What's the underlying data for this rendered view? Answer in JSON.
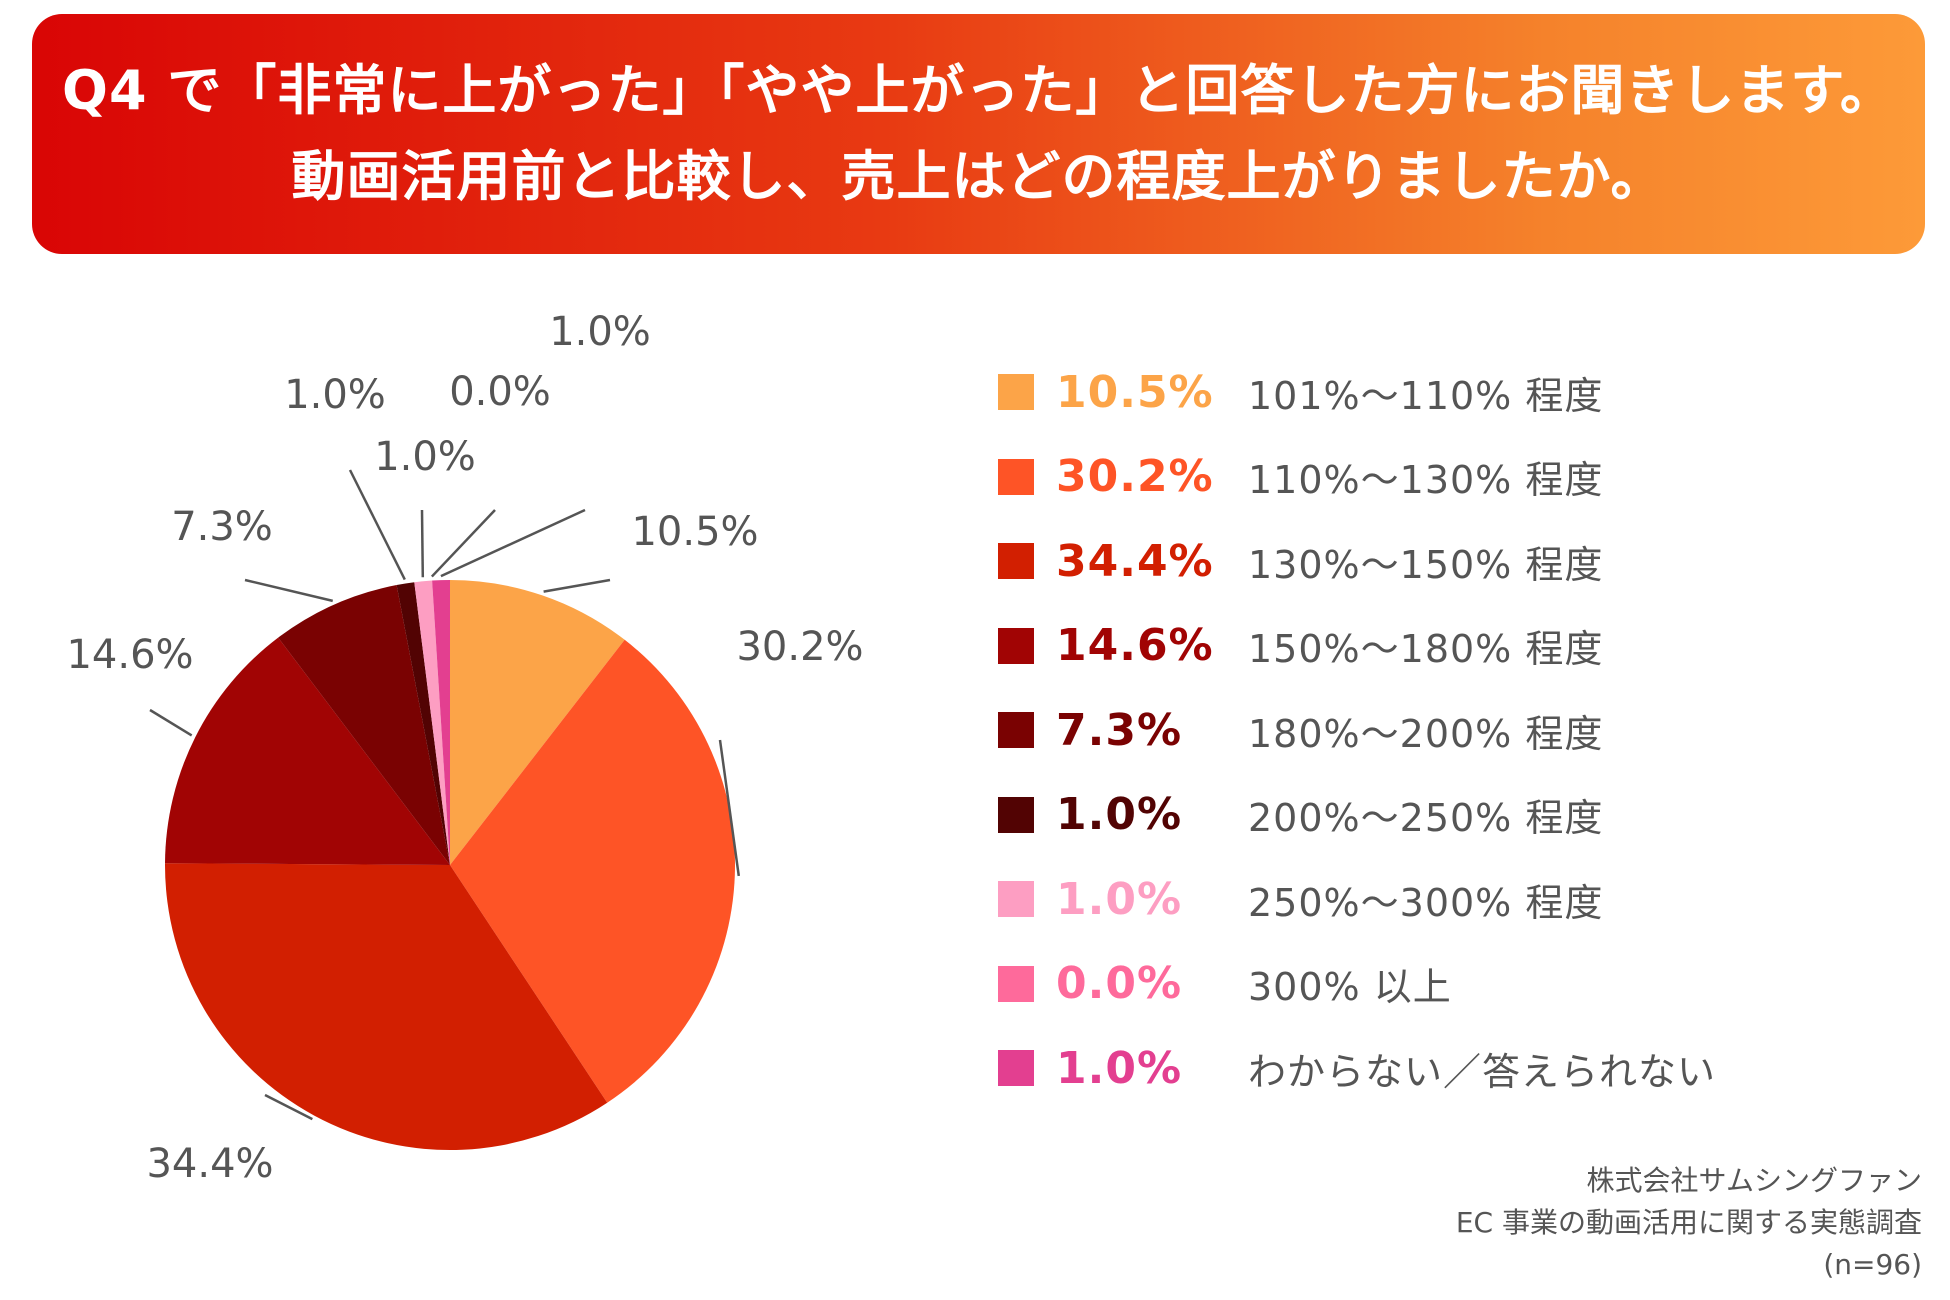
{
  "header": {
    "line1": "Q4 で「非常に上がった」「やや上がった」と回答した方にお聞きします。",
    "line2": "動画活用前と比較し、売上はどの程度上がりましたか。"
  },
  "chart_data": {
    "type": "pie",
    "title": "Q4 で「非常に上がった」「やや上がった」と回答した方にお聞きします。動画活用前と比較し、売上はどの程度上がりましたか。",
    "legend_position": "right",
    "slices": [
      {
        "label": "101%～110% 程度",
        "value": 10.5,
        "display": "10.5%",
        "color": "#fca448"
      },
      {
        "label": "110%～130% 程度",
        "value": 30.2,
        "display": "30.2%",
        "color": "#fe5426"
      },
      {
        "label": "130%～150% 程度",
        "value": 34.4,
        "display": "34.4%",
        "color": "#d21f01"
      },
      {
        "label": "150%～180% 程度",
        "value": 14.6,
        "display": "14.6%",
        "color": "#a10404"
      },
      {
        "label": "180%～200% 程度",
        "value": 7.3,
        "display": "7.3%",
        "color": "#7a0202"
      },
      {
        "label": "200%～250% 程度",
        "value": 1.0,
        "display": "1.0%",
        "color": "#520303"
      },
      {
        "label": "250%～300% 程度",
        "value": 1.0,
        "display": "1.0%",
        "color": "#fd9ec2"
      },
      {
        "label": "300% 以上",
        "value": 0.0,
        "display": "0.0%",
        "color": "#fe6a9b"
      },
      {
        "label": "わからない／答えられない",
        "value": 1.0,
        "display": "1.0%",
        "color": "#e33f90"
      }
    ]
  },
  "source": {
    "line1": "株式会社サムシングファン",
    "line2": "EC 事業の動画活用に関する実態調査",
    "line3": "(n=96)"
  }
}
